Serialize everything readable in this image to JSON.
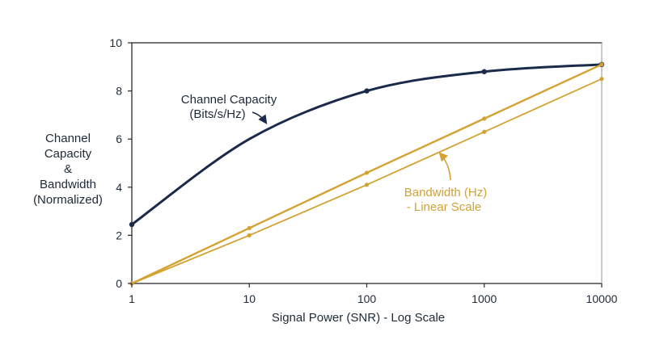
{
  "chart_data": {
    "type": "line",
    "xlabel": "Signal Power (SNR) - Log Scale",
    "ylabel_lines": [
      "Channel",
      "Capacity",
      "&",
      "Bandwidth",
      "(Normalized)"
    ],
    "x_scale": "log",
    "x_ticks": [
      "1",
      "10",
      "100",
      "1000",
      "10000"
    ],
    "y_ticks": [
      "0",
      "2",
      "4",
      "6",
      "8",
      "10"
    ],
    "xlim": [
      1,
      10000
    ],
    "ylim": [
      0,
      10
    ],
    "grid": false,
    "series": [
      {
        "color": "#1b2a4a",
        "x": [
          1,
          10,
          100,
          1000,
          10000
        ],
        "y": [
          2.45,
          6.0,
          8.0,
          8.8,
          9.1
        ],
        "markers_at": [
          1,
          100,
          1000,
          10000
        ]
      },
      {
        "color": "#d4a233",
        "x": [
          1,
          10,
          100,
          1000,
          10000
        ],
        "y": [
          0.0,
          2.3,
          4.6,
          6.85,
          9.1
        ]
      },
      {
        "color": "#d4a233",
        "x": [
          1,
          10,
          100,
          1000,
          10000
        ],
        "y": [
          0.0,
          2.0,
          4.1,
          6.3,
          8.5
        ]
      }
    ],
    "annotations": [
      {
        "lines": [
          "Channel Capacity",
          "(Bits/s/Hz)"
        ],
        "color": "#1e2a38",
        "target_series": 0
      },
      {
        "lines": [
          "Bandwidth (Hz)",
          "- Linear Scale"
        ],
        "color": "#d4a233",
        "target_series": 2
      }
    ]
  }
}
